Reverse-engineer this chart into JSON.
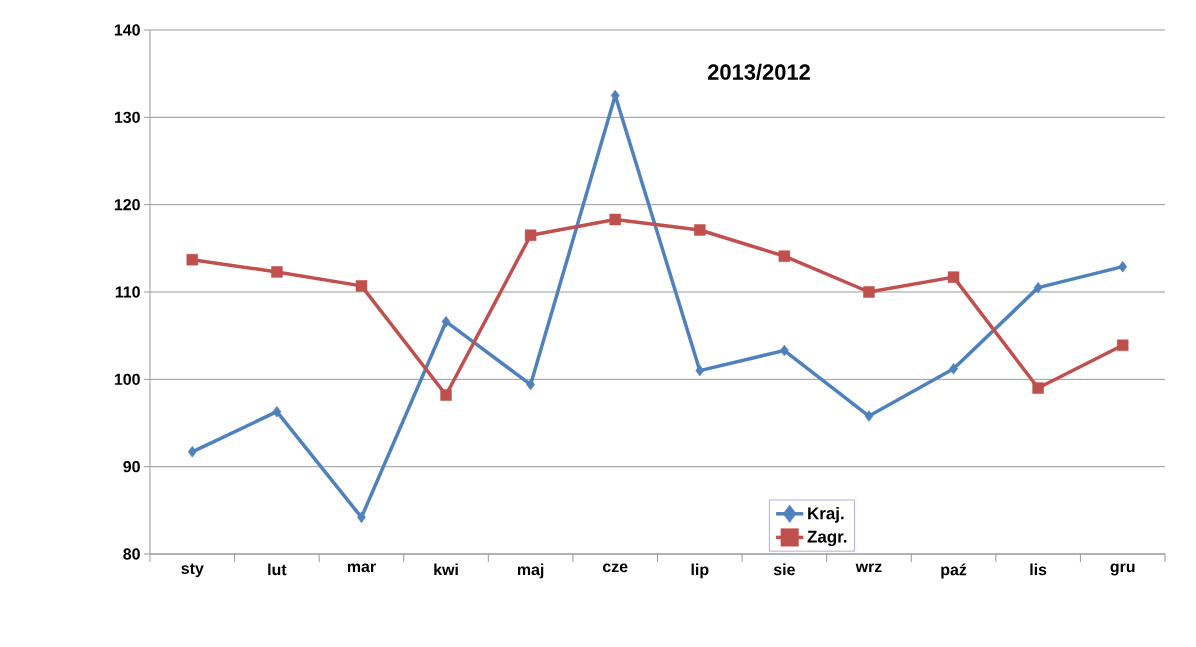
{
  "chart_data": {
    "type": "line",
    "title": "2013/2012",
    "categories": [
      "sty",
      "lut",
      "mar",
      "kwi",
      "maj",
      "cze",
      "lip",
      "sie",
      "wrz",
      "paź",
      "lis",
      "gru"
    ],
    "series": [
      {
        "name": "Kraj.",
        "color": "#4f81bd",
        "marker": "diamond",
        "values": [
          91.7,
          96.3,
          84.2,
          106.6,
          99.4,
          132.5,
          101.0,
          103.3,
          95.8,
          101.2,
          110.5,
          112.9
        ]
      },
      {
        "name": "Zagr.",
        "color": "#c0504d",
        "marker": "square",
        "values": [
          113.7,
          112.3,
          110.7,
          98.2,
          116.5,
          118.3,
          117.1,
          114.1,
          110.0,
          111.7,
          99.0,
          103.9
        ]
      }
    ],
    "ylim": [
      80,
      140
    ],
    "yticks": [
      80,
      90,
      100,
      110,
      120,
      130,
      140
    ],
    "grid": "y",
    "legend": "bottom right",
    "line_style": "solid"
  }
}
